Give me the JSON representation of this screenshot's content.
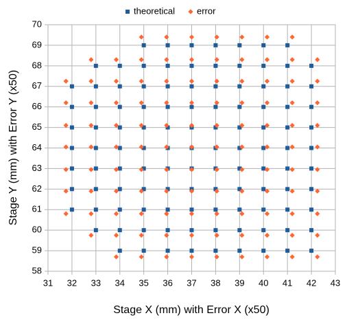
{
  "chart_data": {
    "type": "scatter",
    "xlabel": "Stage X (mm) with Error X (x50)",
    "ylabel": "Stage Y (mm) with Error Y (x50)",
    "xlim": [
      31,
      43
    ],
    "xticks": [
      31,
      32,
      33,
      34,
      35,
      36,
      37,
      38,
      39,
      40,
      41,
      42,
      43
    ],
    "ylim": [
      58,
      70
    ],
    "yticks": [
      58,
      59,
      60,
      61,
      62,
      63,
      64,
      65,
      66,
      67,
      68,
      69,
      70
    ],
    "grid": true,
    "legend": "top",
    "series": [
      {
        "name": "theoretical",
        "color": "#1f5c99",
        "marker": "square",
        "x": [
          35,
          36,
          37,
          38,
          39,
          40,
          41,
          33,
          34,
          35,
          36,
          37,
          38,
          39,
          40,
          41,
          42,
          32,
          33,
          34,
          35,
          36,
          37,
          38,
          39,
          40,
          41,
          42,
          32,
          33,
          34,
          35,
          36,
          37,
          38,
          39,
          40,
          41,
          42,
          32,
          33,
          34,
          35,
          36,
          37,
          38,
          39,
          40,
          41,
          42,
          32,
          33,
          34,
          35,
          36,
          37,
          38,
          39,
          40,
          41,
          42,
          32,
          33,
          34,
          35,
          36,
          37,
          38,
          39,
          40,
          41,
          42,
          32,
          33,
          34,
          35,
          36,
          37,
          38,
          39,
          40,
          41,
          42,
          32,
          33,
          34,
          35,
          36,
          37,
          38,
          39,
          40,
          41,
          42,
          33,
          34,
          35,
          36,
          37,
          38,
          39,
          40,
          41,
          42,
          34,
          35,
          36,
          37,
          38,
          39,
          40,
          41,
          42
        ],
        "values": [
          69,
          69,
          69,
          69,
          69,
          69,
          69,
          68,
          68,
          68,
          68,
          68,
          68,
          68,
          68,
          68,
          68,
          67,
          67,
          67,
          67,
          67,
          67,
          67,
          67,
          67,
          67,
          67,
          66,
          66,
          66,
          66,
          66,
          66,
          66,
          66,
          66,
          66,
          66,
          65,
          65,
          65,
          65,
          65,
          65,
          65,
          65,
          65,
          65,
          65,
          64,
          64,
          64,
          64,
          64,
          64,
          64,
          64,
          64,
          64,
          64,
          63,
          63,
          63,
          63,
          63,
          63,
          63,
          63,
          63,
          63,
          63,
          62,
          62,
          62,
          62,
          62,
          62,
          62,
          62,
          62,
          62,
          62,
          61,
          61,
          61,
          61,
          61,
          61,
          61,
          61,
          61,
          61,
          61,
          60,
          60,
          60,
          60,
          60,
          60,
          60,
          60,
          60,
          60,
          59,
          59,
          59,
          59,
          59,
          59,
          59,
          59,
          59
        ]
      },
      {
        "name": "error",
        "color": "#ff6633",
        "marker": "diamond",
        "x": [
          34.9,
          35.95,
          37,
          38.05,
          39.1,
          40.15,
          41.2,
          32.8,
          33.85,
          34.9,
          35.95,
          37,
          38.05,
          39.1,
          40.15,
          41.2,
          42.25,
          31.75,
          32.8,
          33.85,
          34.9,
          35.95,
          37,
          38.05,
          39.1,
          40.15,
          41.2,
          42.25,
          31.75,
          32.8,
          33.85,
          34.9,
          35.95,
          37,
          38.05,
          39.1,
          40.15,
          41.2,
          42.25,
          31.75,
          32.8,
          33.85,
          34.9,
          35.95,
          37,
          38.05,
          39.1,
          40.15,
          41.2,
          42.25,
          31.75,
          32.8,
          33.85,
          34.9,
          35.95,
          37,
          38.05,
          39.1,
          40.15,
          41.2,
          42.25,
          31.75,
          32.8,
          33.85,
          34.9,
          35.95,
          37,
          38.05,
          39.1,
          40.15,
          41.2,
          42.25,
          31.75,
          32.8,
          33.85,
          34.9,
          35.95,
          37,
          38.05,
          39.1,
          40.15,
          41.2,
          42.25,
          31.75,
          32.8,
          33.85,
          34.9,
          35.95,
          37,
          38.05,
          39.1,
          40.15,
          41.2,
          42.25,
          32.8,
          33.85,
          34.9,
          35.95,
          37,
          38.05,
          39.1,
          40.15,
          41.2,
          42.25,
          33.85,
          34.9,
          35.95,
          37,
          38.05,
          39.1,
          40.15,
          41.2,
          42.25
        ],
        "values": [
          69.4,
          69.4,
          69.4,
          69.4,
          69.4,
          69.4,
          69.4,
          68.3,
          68.3,
          68.3,
          68.3,
          68.3,
          68.3,
          68.3,
          68.3,
          68.3,
          68.3,
          67.25,
          67.25,
          67.25,
          67.25,
          67.25,
          67.25,
          67.25,
          67.25,
          67.25,
          67.25,
          67.25,
          66.2,
          66.2,
          66.2,
          66.2,
          66.2,
          66.2,
          66.2,
          66.2,
          66.2,
          66.2,
          66.2,
          65.1,
          65.1,
          65.1,
          65.1,
          65.1,
          65.1,
          65.1,
          65.1,
          65.1,
          65.1,
          65.1,
          64.05,
          64.05,
          64.05,
          64.05,
          64.05,
          64.05,
          64.05,
          64.05,
          64.05,
          64.05,
          64.05,
          62.95,
          62.95,
          62.95,
          62.95,
          62.95,
          62.95,
          62.95,
          62.95,
          62.95,
          62.95,
          62.95,
          61.9,
          61.9,
          61.9,
          61.9,
          61.9,
          61.9,
          61.9,
          61.9,
          61.9,
          61.9,
          61.9,
          60.8,
          60.8,
          60.8,
          60.8,
          60.8,
          60.8,
          60.8,
          60.8,
          60.8,
          60.8,
          60.8,
          59.75,
          59.75,
          59.75,
          59.75,
          59.75,
          59.75,
          59.75,
          59.75,
          59.75,
          59.75,
          58.7,
          58.7,
          58.7,
          58.7,
          58.7,
          58.7,
          58.7,
          58.7,
          58.7
        ]
      }
    ]
  }
}
